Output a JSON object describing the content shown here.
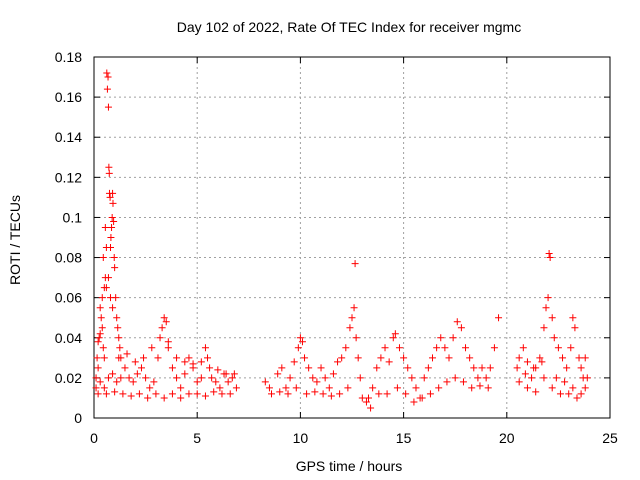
{
  "chart_data": {
    "type": "scatter",
    "title": "Day 102 of 2022, Rate Of TEC Index for receiver mgmc",
    "xlabel": "GPS time / hours",
    "ylabel": "ROTI / TECUs",
    "xlim": [
      0,
      25
    ],
    "ylim": [
      0,
      0.18
    ],
    "x_ticks": [
      "0",
      "5",
      "10",
      "15",
      "20",
      "25"
    ],
    "y_ticks": [
      "0",
      "0.02",
      "0.04",
      "0.06",
      "0.08",
      "0.1",
      "0.12",
      "0.14",
      "0.16",
      "0.18"
    ],
    "grid": true,
    "marker": "plus",
    "color": "#ff0000",
    "series": [
      {
        "points": [
          [
            0.1,
            0.02
          ],
          [
            0.15,
            0.03
          ],
          [
            0.2,
            0.025
          ],
          [
            0.25,
            0.04
          ],
          [
            0.3,
            0.055
          ],
          [
            0.35,
            0.05
          ],
          [
            0.4,
            0.06
          ],
          [
            0.45,
            0.035
          ],
          [
            0.5,
            0.03
          ],
          [
            0.55,
            0.07
          ],
          [
            0.6,
            0.065
          ],
          [
            0.62,
            0.172
          ],
          [
            0.65,
            0.164
          ],
          [
            0.68,
            0.17
          ],
          [
            0.7,
            0.155
          ],
          [
            0.72,
            0.125
          ],
          [
            0.74,
            0.122
          ],
          [
            0.75,
            0.112
          ],
          [
            0.78,
            0.11
          ],
          [
            0.8,
            0.085
          ],
          [
            0.82,
            0.09
          ],
          [
            0.85,
            0.095
          ],
          [
            0.88,
            0.1
          ],
          [
            0.9,
            0.112
          ],
          [
            0.92,
            0.107
          ],
          [
            0.95,
            0.098
          ],
          [
            0.98,
            0.08
          ],
          [
            1.0,
            0.075
          ],
          [
            1.05,
            0.06
          ],
          [
            1.1,
            0.05
          ],
          [
            1.15,
            0.045
          ],
          [
            1.2,
            0.04
          ],
          [
            1.25,
            0.035
          ],
          [
            1.3,
            0.03
          ],
          [
            0.55,
            0.095
          ],
          [
            0.6,
            0.085
          ],
          [
            0.45,
            0.08
          ],
          [
            0.5,
            0.065
          ],
          [
            0.7,
            0.07
          ],
          [
            0.8,
            0.06
          ],
          [
            0.9,
            0.055
          ],
          [
            0.4,
            0.045
          ],
          [
            0.3,
            0.042
          ],
          [
            0.2,
            0.038
          ],
          [
            0.1,
            0.015
          ],
          [
            0.3,
            0.018
          ],
          [
            0.5,
            0.015
          ],
          [
            0.7,
            0.02
          ],
          [
            0.9,
            0.022
          ],
          [
            1.1,
            0.018
          ],
          [
            1.3,
            0.02
          ],
          [
            1.5,
            0.025
          ],
          [
            1.7,
            0.02
          ],
          [
            1.9,
            0.018
          ],
          [
            2.1,
            0.022
          ],
          [
            2.3,
            0.025
          ],
          [
            2.5,
            0.02
          ],
          [
            2.7,
            0.015
          ],
          [
            2.9,
            0.018
          ],
          [
            3.1,
            0.03
          ],
          [
            3.3,
            0.045
          ],
          [
            3.4,
            0.05
          ],
          [
            3.5,
            0.048
          ],
          [
            3.6,
            0.035
          ],
          [
            3.8,
            0.025
          ],
          [
            4.0,
            0.02
          ],
          [
            4.2,
            0.015
          ],
          [
            4.4,
            0.022
          ],
          [
            4.6,
            0.03
          ],
          [
            4.8,
            0.025
          ],
          [
            5.0,
            0.018
          ],
          [
            5.2,
            0.02
          ],
          [
            5.4,
            0.035
          ],
          [
            5.5,
            0.03
          ],
          [
            5.7,
            0.02
          ],
          [
            5.9,
            0.018
          ],
          [
            6.1,
            0.015
          ],
          [
            6.3,
            0.022
          ],
          [
            6.5,
            0.018
          ],
          [
            6.7,
            0.02
          ],
          [
            6.9,
            0.015
          ],
          [
            0.2,
            0.012
          ],
          [
            0.6,
            0.012
          ],
          [
            1.0,
            0.013
          ],
          [
            1.4,
            0.012
          ],
          [
            1.8,
            0.011
          ],
          [
            2.2,
            0.012
          ],
          [
            2.6,
            0.01
          ],
          [
            3.0,
            0.012
          ],
          [
            3.4,
            0.01
          ],
          [
            3.8,
            0.012
          ],
          [
            4.2,
            0.01
          ],
          [
            4.6,
            0.012
          ],
          [
            5.0,
            0.012
          ],
          [
            5.4,
            0.011
          ],
          [
            5.8,
            0.013
          ],
          [
            6.2,
            0.012
          ],
          [
            6.6,
            0.012
          ],
          [
            1.2,
            0.03
          ],
          [
            1.6,
            0.032
          ],
          [
            2.0,
            0.028
          ],
          [
            2.4,
            0.03
          ],
          [
            2.8,
            0.035
          ],
          [
            3.2,
            0.04
          ],
          [
            3.6,
            0.038
          ],
          [
            4.0,
            0.03
          ],
          [
            4.4,
            0.028
          ],
          [
            4.8,
            0.027
          ],
          [
            5.2,
            0.028
          ],
          [
            5.6,
            0.025
          ],
          [
            6.0,
            0.024
          ],
          [
            6.4,
            0.022
          ],
          [
            6.8,
            0.022
          ],
          [
            8.3,
            0.018
          ],
          [
            8.6,
            0.012
          ],
          [
            8.9,
            0.022
          ],
          [
            9.1,
            0.025
          ],
          [
            9.3,
            0.015
          ],
          [
            9.5,
            0.02
          ],
          [
            9.7,
            0.028
          ],
          [
            9.9,
            0.035
          ],
          [
            10.0,
            0.04
          ],
          [
            10.1,
            0.038
          ],
          [
            10.2,
            0.03
          ],
          [
            10.4,
            0.025
          ],
          [
            10.6,
            0.02
          ],
          [
            10.8,
            0.018
          ],
          [
            11.0,
            0.025
          ],
          [
            11.2,
            0.02
          ],
          [
            11.4,
            0.015
          ],
          [
            11.6,
            0.022
          ],
          [
            11.8,
            0.028
          ],
          [
            12.0,
            0.03
          ],
          [
            12.2,
            0.035
          ],
          [
            12.4,
            0.045
          ],
          [
            12.5,
            0.05
          ],
          [
            12.6,
            0.055
          ],
          [
            12.65,
            0.077
          ],
          [
            12.7,
            0.04
          ],
          [
            12.8,
            0.03
          ],
          [
            12.9,
            0.02
          ],
          [
            13.0,
            0.01
          ],
          [
            13.2,
            0.008
          ],
          [
            13.4,
            0.005
          ],
          [
            13.5,
            0.015
          ],
          [
            13.7,
            0.025
          ],
          [
            13.9,
            0.03
          ],
          [
            14.1,
            0.035
          ],
          [
            14.3,
            0.028
          ],
          [
            14.5,
            0.04
          ],
          [
            14.6,
            0.042
          ],
          [
            14.8,
            0.035
          ],
          [
            15.0,
            0.03
          ],
          [
            15.2,
            0.025
          ],
          [
            15.4,
            0.02
          ],
          [
            15.6,
            0.015
          ],
          [
            15.8,
            0.01
          ],
          [
            16.0,
            0.02
          ],
          [
            16.2,
            0.025
          ],
          [
            16.4,
            0.03
          ],
          [
            16.6,
            0.035
          ],
          [
            16.8,
            0.04
          ],
          [
            17.0,
            0.035
          ],
          [
            17.2,
            0.03
          ],
          [
            17.4,
            0.04
          ],
          [
            17.6,
            0.048
          ],
          [
            17.8,
            0.045
          ],
          [
            18.0,
            0.035
          ],
          [
            18.2,
            0.03
          ],
          [
            18.4,
            0.025
          ],
          [
            18.6,
            0.02
          ],
          [
            18.8,
            0.025
          ],
          [
            19.0,
            0.02
          ],
          [
            19.2,
            0.025
          ],
          [
            19.4,
            0.035
          ],
          [
            19.6,
            0.05
          ],
          [
            8.5,
            0.015
          ],
          [
            9.0,
            0.013
          ],
          [
            9.4,
            0.012
          ],
          [
            9.8,
            0.015
          ],
          [
            10.3,
            0.012
          ],
          [
            10.7,
            0.013
          ],
          [
            11.1,
            0.012
          ],
          [
            11.5,
            0.011
          ],
          [
            11.9,
            0.012
          ],
          [
            12.3,
            0.015
          ],
          [
            13.3,
            0.01
          ],
          [
            13.8,
            0.012
          ],
          [
            14.2,
            0.012
          ],
          [
            14.7,
            0.015
          ],
          [
            15.1,
            0.012
          ],
          [
            15.5,
            0.008
          ],
          [
            15.9,
            0.01
          ],
          [
            16.3,
            0.012
          ],
          [
            16.7,
            0.015
          ],
          [
            17.1,
            0.018
          ],
          [
            17.5,
            0.02
          ],
          [
            17.9,
            0.018
          ],
          [
            18.3,
            0.015
          ],
          [
            18.7,
            0.016
          ],
          [
            19.1,
            0.015
          ],
          [
            20.5,
            0.025
          ],
          [
            20.6,
            0.03
          ],
          [
            20.8,
            0.035
          ],
          [
            21.0,
            0.028
          ],
          [
            21.2,
            0.02
          ],
          [
            21.4,
            0.025
          ],
          [
            21.6,
            0.03
          ],
          [
            21.8,
            0.045
          ],
          [
            21.9,
            0.055
          ],
          [
            22.0,
            0.06
          ],
          [
            22.05,
            0.082
          ],
          [
            22.1,
            0.08
          ],
          [
            22.2,
            0.05
          ],
          [
            22.3,
            0.04
          ],
          [
            22.5,
            0.035
          ],
          [
            22.7,
            0.03
          ],
          [
            22.9,
            0.025
          ],
          [
            23.1,
            0.035
          ],
          [
            23.2,
            0.05
          ],
          [
            23.3,
            0.045
          ],
          [
            23.5,
            0.03
          ],
          [
            23.6,
            0.025
          ],
          [
            23.7,
            0.02
          ],
          [
            23.8,
            0.03
          ],
          [
            23.9,
            0.02
          ],
          [
            20.6,
            0.018
          ],
          [
            21.0,
            0.015
          ],
          [
            21.4,
            0.013
          ],
          [
            21.8,
            0.02
          ],
          [
            22.2,
            0.015
          ],
          [
            22.6,
            0.012
          ],
          [
            23.0,
            0.012
          ],
          [
            23.4,
            0.01
          ],
          [
            23.8,
            0.015
          ],
          [
            20.9,
            0.022
          ],
          [
            21.3,
            0.025
          ],
          [
            21.7,
            0.028
          ],
          [
            22.4,
            0.02
          ],
          [
            22.8,
            0.018
          ],
          [
            23.2,
            0.015
          ],
          [
            23.6,
            0.012
          ]
        ]
      }
    ]
  }
}
